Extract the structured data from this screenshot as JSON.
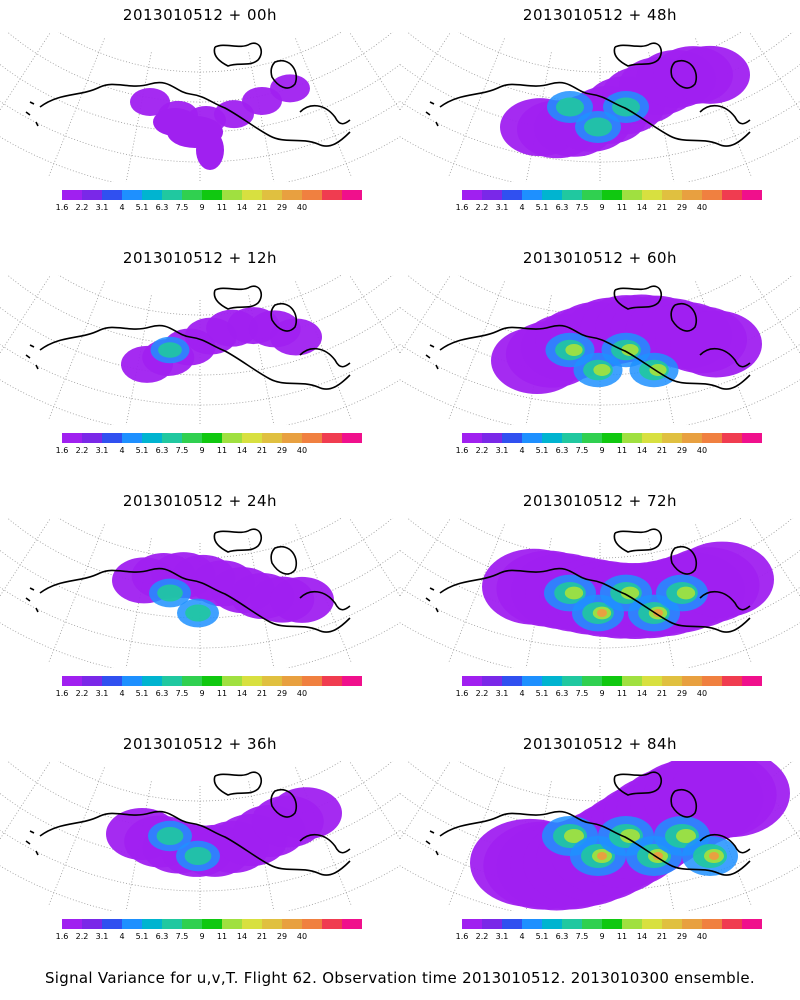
{
  "panels": [
    {
      "title": "2013010512 + 00h",
      "spread": 0.0
    },
    {
      "title": "2013010512 + 48h",
      "spread": 0.5
    },
    {
      "title": "2013010512 + 12h",
      "spread": 0.15
    },
    {
      "title": "2013010512 + 60h",
      "spread": 0.65
    },
    {
      "title": "2013010512 + 24h",
      "spread": 0.3
    },
    {
      "title": "2013010512 + 72h",
      "spread": 0.8
    },
    {
      "title": "2013010512 + 36h",
      "spread": 0.4
    },
    {
      "title": "2013010512 + 84h",
      "spread": 1.0
    }
  ],
  "colorbar": {
    "colors": [
      "#a020f0",
      "#7a28e8",
      "#3050f0",
      "#1e90ff",
      "#00b4d0",
      "#20c8a0",
      "#30d050",
      "#10c810",
      "#a0e040",
      "#d8e040",
      "#e0c040",
      "#e8a040",
      "#f08040",
      "#f03c50",
      "#f0108c"
    ],
    "labels": [
      "1.6",
      "2.2",
      "3.1",
      "4",
      "5.1",
      "6.3",
      "7.5",
      "9",
      "11",
      "14",
      "21",
      "29",
      "40"
    ]
  },
  "caption": "Signal Variance for u,v,T. Flight 62. Observation time 2013010512. 2013010300 ensemble."
}
